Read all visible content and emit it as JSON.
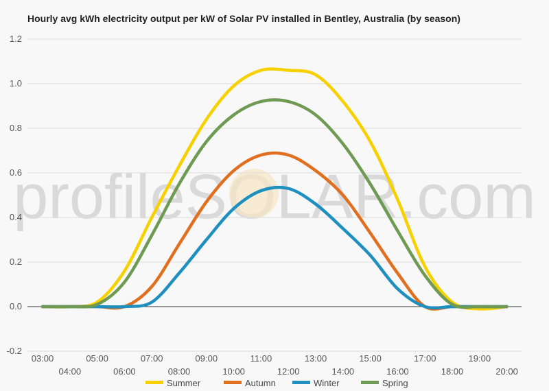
{
  "watermark": "profileSOLAR.com",
  "chart_data": {
    "type": "line",
    "title": "Hourly avg kWh electricity output per kW of Solar PV installed in Bentley, Australia (by season)",
    "xlabel": "",
    "ylabel": "",
    "x": [
      "03:00",
      "04:00",
      "05:00",
      "06:00",
      "07:00",
      "08:00",
      "09:00",
      "10:00",
      "11:00",
      "12:00",
      "13:00",
      "14:00",
      "15:00",
      "16:00",
      "17:00",
      "18:00",
      "19:00",
      "20:00"
    ],
    "ylim": [
      -0.2,
      1.2
    ],
    "yticks": [
      "-0.2",
      "0.0",
      "0.2",
      "0.4",
      "0.6",
      "0.8",
      "1.0",
      "1.2"
    ],
    "grid": true,
    "legend_position": "bottom",
    "series": [
      {
        "name": "Summer",
        "color": "#f7d000",
        "values": [
          0.0,
          0.0,
          0.02,
          0.16,
          0.4,
          0.63,
          0.84,
          0.99,
          1.06,
          1.06,
          1.04,
          0.92,
          0.74,
          0.48,
          0.18,
          0.02,
          -0.01,
          0.0
        ]
      },
      {
        "name": "Autumn",
        "color": "#e07020",
        "values": [
          0.0,
          0.0,
          0.0,
          0.0,
          0.09,
          0.28,
          0.47,
          0.61,
          0.68,
          0.68,
          0.61,
          0.5,
          0.33,
          0.15,
          0.0,
          0.0,
          0.0,
          0.0
        ]
      },
      {
        "name": "Winter",
        "color": "#1e8fbf",
        "values": [
          0.0,
          0.0,
          0.0,
          0.0,
          0.02,
          0.15,
          0.3,
          0.44,
          0.52,
          0.53,
          0.46,
          0.35,
          0.23,
          0.08,
          0.0,
          0.0,
          0.0,
          0.0
        ]
      },
      {
        "name": "Spring",
        "color": "#6e9a54",
        "values": [
          0.0,
          0.0,
          0.01,
          0.11,
          0.32,
          0.55,
          0.74,
          0.86,
          0.92,
          0.92,
          0.86,
          0.73,
          0.55,
          0.34,
          0.14,
          0.01,
          0.0,
          0.0
        ]
      }
    ]
  }
}
